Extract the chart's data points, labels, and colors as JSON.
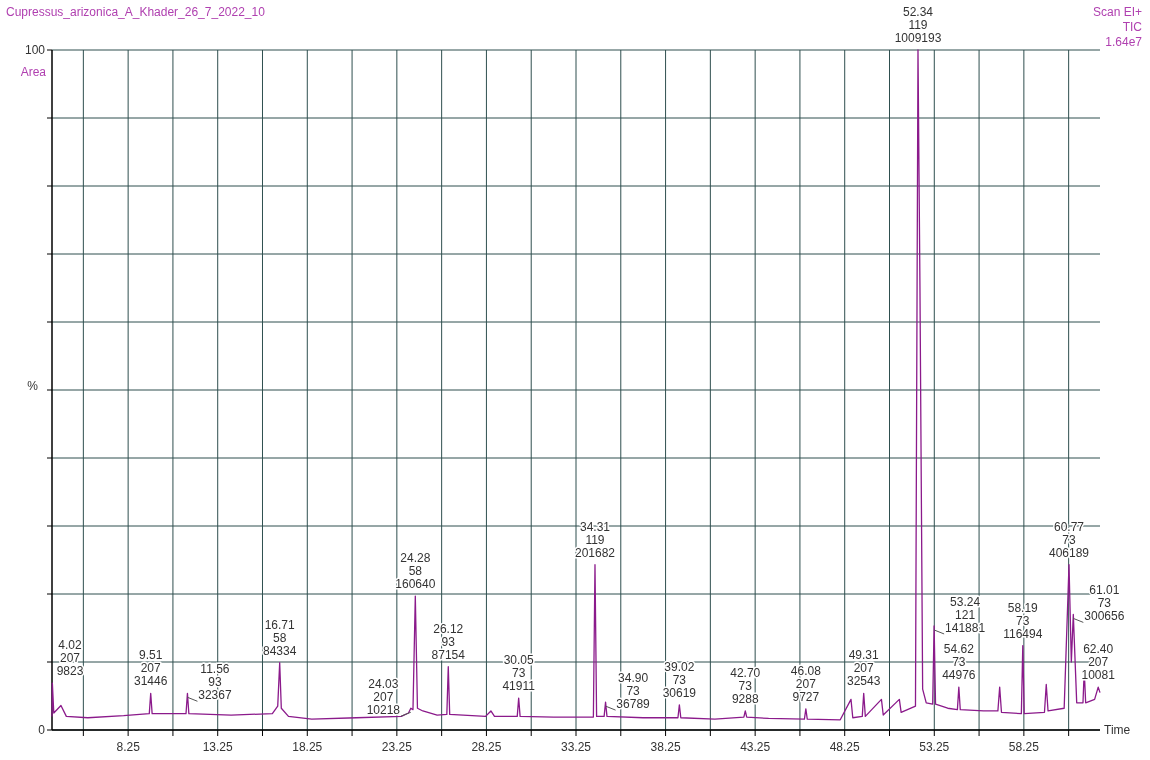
{
  "chart_data": {
    "type": "line",
    "title": "Cupressus_arizonica_A_Khader_26_7_2022_10",
    "xlabel": "Time",
    "ylabel": "%",
    "x": [
      4.0,
      4.02,
      4.1,
      4.5,
      4.8,
      6.0,
      8.0,
      9.43,
      9.51,
      9.59,
      11.0,
      11.48,
      11.56,
      11.64,
      14.0,
      16.3,
      16.6,
      16.71,
      16.8,
      17.2,
      18.5,
      21.0,
      23.5,
      23.9,
      24.03,
      24.15,
      24.28,
      24.4,
      24.7,
      25.5,
      26.04,
      26.12,
      26.2,
      28.2,
      28.5,
      28.7,
      29.97,
      30.05,
      30.13,
      32.0,
      34.22,
      34.31,
      34.4,
      34.82,
      34.9,
      34.98,
      37.0,
      38.94,
      39.02,
      39.1,
      41.0,
      42.62,
      42.7,
      42.78,
      44.0,
      46.0,
      46.08,
      46.16,
      48.0,
      48.6,
      48.7,
      49.23,
      49.31,
      49.4,
      50.3,
      50.4,
      51.3,
      51.4,
      52.2,
      52.34,
      52.45,
      52.6,
      52.8,
      53.16,
      53.24,
      53.32,
      54.0,
      54.54,
      54.62,
      54.7,
      56.0,
      56.8,
      56.9,
      57.0,
      58.11,
      58.19,
      58.27,
      59.4,
      59.5,
      59.6,
      60.5,
      60.77,
      60.9,
      61.01,
      61.2,
      61.55,
      61.62,
      61.7,
      62.2,
      62.4,
      62.5
    ],
    "series": [
      {
        "color": "#8b1a8b",
        "values": [
          2.0,
          6.9,
          2.5,
          3.6,
          2.0,
          1.8,
          2.1,
          2.4,
          5.4,
          2.4,
          2.4,
          2.4,
          5.4,
          2.4,
          2.2,
          2.4,
          3.5,
          9.9,
          3.2,
          2.0,
          1.6,
          1.8,
          2.0,
          2.5,
          3.2,
          3.0,
          19.7,
          3.2,
          2.8,
          2.2,
          2.3,
          9.3,
          2.3,
          2.0,
          2.8,
          2.0,
          2.0,
          4.7,
          2.0,
          1.9,
          1.9,
          24.3,
          2.0,
          2.0,
          4.1,
          2.0,
          1.8,
          1.8,
          3.7,
          1.8,
          1.6,
          1.9,
          2.8,
          1.9,
          1.7,
          1.6,
          3.1,
          1.6,
          1.5,
          4.5,
          1.8,
          2.0,
          5.4,
          2.0,
          4.5,
          2.2,
          4.5,
          2.6,
          3.5,
          100,
          65,
          6.0,
          4.0,
          3.8,
          15.3,
          3.8,
          3.2,
          3.0,
          6.3,
          3.0,
          2.8,
          2.8,
          6.3,
          2.6,
          2.4,
          12.4,
          2.4,
          2.6,
          6.7,
          2.8,
          3.2,
          24.3,
          10,
          17,
          4.0,
          4.0,
          8.8,
          4.0,
          4.5,
          6.3,
          5.5
        ]
      }
    ],
    "xlim": [
      4.0,
      62.5
    ],
    "ylim": [
      0,
      100
    ],
    "xticks": [
      {
        "value": 5.75,
        "label": null
      },
      8.25,
      {
        "value": 10.75,
        "label": null
      },
      13.25,
      {
        "value": 15.75,
        "label": null
      },
      18.25,
      {
        "value": 20.75,
        "label": null
      },
      23.25,
      {
        "value": 25.75,
        "label": null
      },
      28.25,
      {
        "value": 30.75,
        "label": null
      },
      33.25,
      {
        "value": 35.75,
        "label": null
      },
      38.25,
      {
        "value": 40.75,
        "label": null
      },
      43.25,
      {
        "value": 45.75,
        "label": null
      },
      48.25,
      {
        "value": 50.75,
        "label": null
      },
      53.25,
      {
        "value": 55.75,
        "label": null
      },
      58.25,
      {
        "value": 60.75,
        "label": null
      }
    ],
    "yticks": [
      0,
      {
        "value": 10,
        "label": null
      },
      {
        "value": 20,
        "label": null
      },
      {
        "value": 30,
        "label": null
      },
      {
        "value": 40,
        "label": null
      },
      {
        "value": 50,
        "label": null
      },
      {
        "value": 60,
        "label": null
      },
      {
        "value": 70,
        "label": null
      },
      {
        "value": 80,
        "label": null
      },
      {
        "value": 90,
        "label": null
      },
      100
    ],
    "grid": true,
    "annotations": [
      "Area",
      "Scan EI+",
      "TIC",
      "1.64e7",
      {
        "text": "4.02\n207\n9823",
        "x": 4.02,
        "y": 6.9
      },
      {
        "text": "9.51\n207\n31446",
        "x": 9.51,
        "y": 5.4
      },
      {
        "text": "11.56\n93\n32367",
        "x": 11.56,
        "y": 5.4
      },
      {
        "text": "16.71\n58\n84334",
        "x": 16.71,
        "y": 9.9
      },
      {
        "text": "24.03\n207\n10218",
        "x": 24.03,
        "y": 3.2
      },
      {
        "text": "24.28\n58\n160640",
        "x": 24.28,
        "y": 19.7
      },
      {
        "text": "26.12\n93\n87154",
        "x": 26.12,
        "y": 9.3
      },
      {
        "text": "30.05\n73\n41911",
        "x": 30.05,
        "y": 4.7
      },
      {
        "text": "34.31\n119\n201682",
        "x": 34.31,
        "y": 24.3
      },
      {
        "text": "34.90\n73\n36789",
        "x": 34.9,
        "y": 4.1
      },
      {
        "text": "39.02\n73\n30619",
        "x": 39.02,
        "y": 3.7
      },
      {
        "text": "42.70\n73\n9288",
        "x": 42.7,
        "y": 2.8
      },
      {
        "text": "46.08\n207\n9727",
        "x": 46.08,
        "y": 3.1
      },
      {
        "text": "49.31\n207\n32543",
        "x": 49.31,
        "y": 5.4
      },
      {
        "text": "52.34\n119\n1009193",
        "x": 52.34,
        "y": 100
      },
      {
        "text": "53.24\n121\n141881",
        "x": 53.24,
        "y": 15.3
      },
      {
        "text": "54.62\n73\n44976",
        "x": 54.62,
        "y": 6.3
      },
      {
        "text": "58.19\n73\n116494",
        "x": 58.19,
        "y": 12.4
      },
      {
        "text": "60.77\n73\n406189",
        "x": 60.77,
        "y": 24.3
      },
      {
        "text": "61.01\n73\n300656",
        "x": 61.01,
        "y": 17
      },
      {
        "text": "62.40\n207\n10081",
        "x": 62.4,
        "y": 6.3
      }
    ]
  }
}
